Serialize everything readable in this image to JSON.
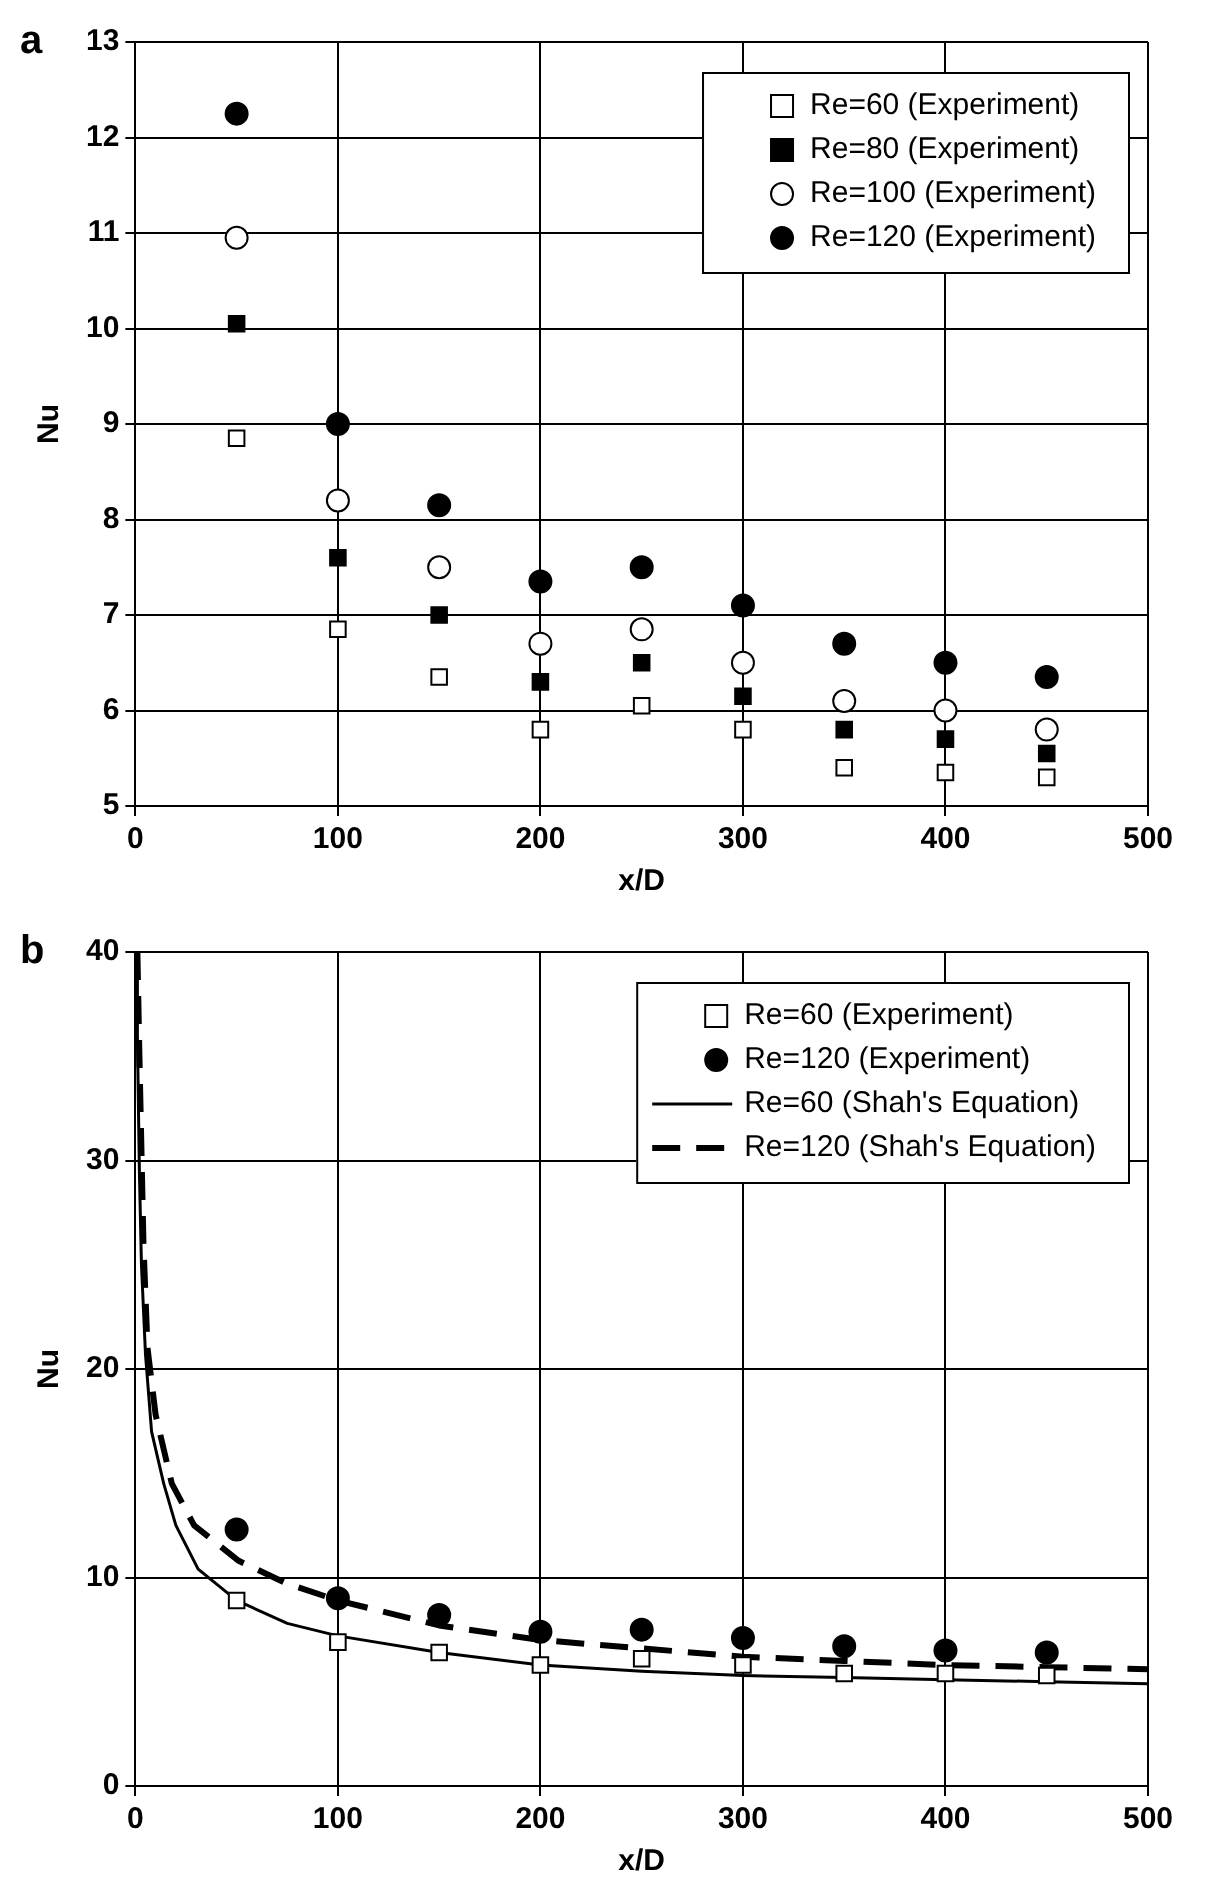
{
  "chart_data": [
    {
      "type": "scatter",
      "title": "a",
      "xlabel": "x/D",
      "ylabel": "Nu",
      "x": [
        50,
        100,
        150,
        200,
        250,
        300,
        350,
        400,
        450
      ],
      "xlim": [
        0,
        500
      ],
      "xticks": [
        0,
        100,
        200,
        300,
        400,
        500
      ],
      "ylim": [
        5,
        13
      ],
      "yticks": [
        5,
        6,
        7,
        8,
        9,
        10,
        11,
        12,
        13
      ],
      "grid": true,
      "legend": "top right",
      "series": [
        {
          "name": "Re=60 (Experiment)",
          "color": "#ffffff",
          "marker": "square",
          "values": [
            8.85,
            6.85,
            6.35,
            5.8,
            6.05,
            5.8,
            5.4,
            5.35,
            5.3
          ]
        },
        {
          "name": "Re=80 (Experiment)",
          "color": "#000000",
          "marker": "square",
          "values": [
            10.05,
            7.6,
            7.0,
            6.3,
            6.5,
            6.15,
            5.8,
            5.7,
            5.55
          ]
        },
        {
          "name": "Re=100 (Experiment)",
          "color": "#ffffff",
          "marker": "circle",
          "values": [
            10.95,
            8.2,
            7.5,
            6.7,
            6.85,
            6.5,
            6.1,
            6.0,
            5.8
          ]
        },
        {
          "name": "Re=120 (Experiment)",
          "color": "#000000",
          "marker": "circle",
          "values": [
            12.25,
            9.0,
            8.15,
            7.35,
            7.5,
            7.1,
            6.7,
            6.5,
            6.35
          ]
        }
      ]
    },
    {
      "type": "scatter",
      "title": "b",
      "xlabel": "x/D",
      "ylabel": "Nu",
      "x": [
        50,
        100,
        150,
        200,
        250,
        300,
        350,
        400,
        450
      ],
      "xlim": [
        0,
        500
      ],
      "xticks": [
        0,
        100,
        200,
        300,
        400,
        500
      ],
      "ylim": [
        0,
        40
      ],
      "yticks": [
        0,
        10,
        20,
        30,
        40
      ],
      "grid": true,
      "legend": "top right",
      "series": [
        {
          "name": "Re=60 (Experiment)",
          "color": "#ffffff",
          "marker": "square",
          "values": [
            8.9,
            6.9,
            6.4,
            5.8,
            6.1,
            5.8,
            5.4,
            5.4,
            5.3
          ]
        },
        {
          "name": "Re=120 (Experiment)",
          "color": "#000000",
          "marker": "circle",
          "values": [
            12.3,
            9.0,
            8.2,
            7.4,
            7.5,
            7.1,
            6.7,
            6.5,
            6.4
          ]
        },
        {
          "name": "Re=60 (Shah's Equation)",
          "type": "line",
          "color": "#000000",
          "marker": "none",
          "line_style": "solid",
          "x": [
            0.5,
            1,
            2,
            3,
            5,
            8,
            14,
            20,
            31,
            50,
            75,
            100,
            150,
            200,
            250,
            300,
            350,
            400,
            450,
            500
          ],
          "values": [
            40,
            36,
            29.4,
            25,
            20.7,
            17,
            14.5,
            12.5,
            10.4,
            8.9,
            7.8,
            7.2,
            6.4,
            5.8,
            5.5,
            5.3,
            5.2,
            5.1,
            5.0,
            4.9
          ]
        },
        {
          "name": "Re=120 (Shah's Equation)",
          "type": "line",
          "color": "#000000",
          "marker": "none",
          "line_style": "dashed",
          "x": [
            1,
            2,
            4,
            6,
            10,
            18,
            29,
            51,
            75,
            100,
            150,
            200,
            250,
            300,
            350,
            400,
            450,
            500
          ],
          "values": [
            40,
            35,
            26,
            21,
            17.8,
            14.5,
            12.5,
            10.8,
            9.7,
            8.9,
            7.7,
            7.0,
            6.6,
            6.2,
            6.0,
            5.8,
            5.7,
            5.6
          ]
        }
      ]
    }
  ]
}
